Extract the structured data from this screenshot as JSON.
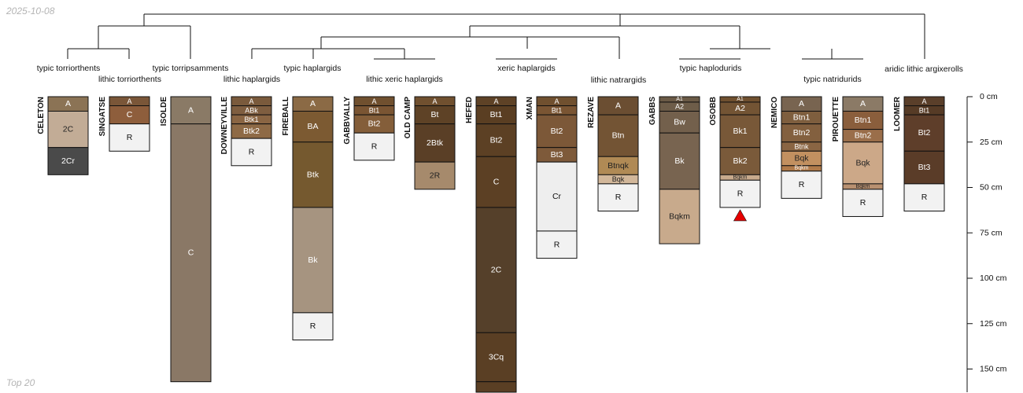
{
  "header": {
    "date": "2025-10-08"
  },
  "footer": {
    "note": "Top 20"
  },
  "depth_axis": {
    "unit": "cm",
    "max_depth": 160,
    "ticks": [
      {
        "value": 0,
        "label": "0 cm"
      },
      {
        "value": 25,
        "label": "25 cm"
      },
      {
        "value": 50,
        "label": "50 cm"
      },
      {
        "value": 75,
        "label": "75 cm"
      },
      {
        "value": 100,
        "label": "100 cm"
      },
      {
        "value": 125,
        "label": "125 cm"
      },
      {
        "value": 150,
        "label": "150 cm"
      }
    ]
  },
  "taxa": [
    "typic torriorthents",
    "lithic torriorthents",
    "typic torripsamments",
    "lithic haplargids",
    "typic haplargids",
    "lithic xeric haplargids",
    "xeric haplargids",
    "lithic natrargids",
    "typic haplodurids",
    "typic natridurids",
    "aridic lithic argixerolls"
  ],
  "profiles": [
    {
      "name": "CELETON",
      "horizons": [
        {
          "name": "A",
          "top": 0,
          "bottom": 8,
          "color": "#8B7355",
          "text": "#ffffff"
        },
        {
          "name": "2C",
          "top": 8,
          "bottom": 28,
          "color": "#C2AC96",
          "text": "#222222"
        },
        {
          "name": "2Cr",
          "top": 28,
          "bottom": 43,
          "color": "#4A4A4A",
          "text": "#ffffff"
        }
      ]
    },
    {
      "name": "SINGATSE",
      "horizons": [
        {
          "name": "A",
          "top": 0,
          "bottom": 5,
          "color": "#7A5638",
          "text": "#ffffff"
        },
        {
          "name": "C",
          "top": 5,
          "bottom": 15,
          "color": "#8E5E3C",
          "text": "#ffffff"
        },
        {
          "name": "R",
          "top": 15,
          "bottom": 30,
          "color": "#F2F2F2",
          "text": "#111111"
        }
      ]
    },
    {
      "name": "ISOLDE",
      "horizons": [
        {
          "name": "A",
          "top": 0,
          "bottom": 15,
          "color": "#8A7A66",
          "text": "#ffffff"
        },
        {
          "name": "C",
          "top": 15,
          "bottom": 157,
          "color": "#8A7866",
          "text": "#ffffff"
        }
      ]
    },
    {
      "name": "DOWNEYVILLE",
      "horizons": [
        {
          "name": "A",
          "top": 0,
          "bottom": 5,
          "color": "#7A5A3C",
          "text": "#ffffff"
        },
        {
          "name": "ABk",
          "top": 5,
          "bottom": 10,
          "color": "#7F5E40",
          "text": "#ffffff"
        },
        {
          "name": "Btk1",
          "top": 10,
          "bottom": 15,
          "color": "#8A6543",
          "text": "#ffffff"
        },
        {
          "name": "Btk2",
          "top": 15,
          "bottom": 23,
          "color": "#8E6A46",
          "text": "#ffffff"
        },
        {
          "name": "R",
          "top": 23,
          "bottom": 38,
          "color": "#F2F2F2",
          "text": "#111111"
        }
      ]
    },
    {
      "name": "FIREBALL",
      "horizons": [
        {
          "name": "A",
          "top": 0,
          "bottom": 8,
          "color": "#8B6A45",
          "text": "#ffffff"
        },
        {
          "name": "BA",
          "top": 8,
          "bottom": 25,
          "color": "#7C5A32",
          "text": "#ffffff"
        },
        {
          "name": "Btk",
          "top": 25,
          "bottom": 61,
          "color": "#75592F",
          "text": "#ffffff"
        },
        {
          "name": "Bk",
          "top": 61,
          "bottom": 119,
          "color": "#A69480",
          "text": "#ffffff"
        },
        {
          "name": "R",
          "top": 119,
          "bottom": 134,
          "color": "#F2F2F2",
          "text": "#111111"
        }
      ]
    },
    {
      "name": "GABBVALLY",
      "horizons": [
        {
          "name": "A",
          "top": 0,
          "bottom": 5,
          "color": "#70502F",
          "text": "#ffffff"
        },
        {
          "name": "Bt1",
          "top": 5,
          "bottom": 10,
          "color": "#7A5533",
          "text": "#ffffff"
        },
        {
          "name": "Bt2",
          "top": 10,
          "bottom": 20,
          "color": "#845E3A",
          "text": "#ffffff"
        },
        {
          "name": "R",
          "top": 20,
          "bottom": 35,
          "color": "#F2F2F2",
          "text": "#111111"
        }
      ]
    },
    {
      "name": "OLD CAMP",
      "horizons": [
        {
          "name": "A",
          "top": 0,
          "bottom": 5,
          "color": "#70502F",
          "text": "#ffffff"
        },
        {
          "name": "Bt",
          "top": 5,
          "bottom": 15,
          "color": "#5E4226",
          "text": "#ffffff"
        },
        {
          "name": "2Btk",
          "top": 15,
          "bottom": 36,
          "color": "#5A3F26",
          "text": "#ffffff"
        },
        {
          "name": "2R",
          "top": 36,
          "bottom": 51,
          "color": "#A68A6C",
          "text": "#222222"
        }
      ]
    },
    {
      "name": "HEFED",
      "horizons": [
        {
          "name": "A",
          "top": 0,
          "bottom": 5,
          "color": "#5E4226",
          "text": "#ffffff"
        },
        {
          "name": "Bt1",
          "top": 5,
          "bottom": 15,
          "color": "#5A3E22",
          "text": "#ffffff"
        },
        {
          "name": "Bt2",
          "top": 15,
          "bottom": 33,
          "color": "#5C4024",
          "text": "#ffffff"
        },
        {
          "name": "C",
          "top": 33,
          "bottom": 61,
          "color": "#5C4024",
          "text": "#ffffff"
        },
        {
          "name": "2C",
          "top": 61,
          "bottom": 130,
          "color": "#55402A",
          "text": "#ffffff"
        },
        {
          "name": "3Cq",
          "top": 130,
          "bottom": 157,
          "color": "#5A3F24",
          "text": "#ffffff"
        },
        {
          "name": "",
          "top": 157,
          "bottom": 165,
          "color": "#5A3F24",
          "text": "#ffffff"
        }
      ]
    },
    {
      "name": "XMAN",
      "horizons": [
        {
          "name": "A",
          "top": 0,
          "bottom": 5,
          "color": "#70502F",
          "text": "#ffffff"
        },
        {
          "name": "Bt1",
          "top": 5,
          "bottom": 10,
          "color": "#7A5533",
          "text": "#ffffff"
        },
        {
          "name": "Bt2",
          "top": 10,
          "bottom": 28,
          "color": "#7C5838",
          "text": "#ffffff"
        },
        {
          "name": "Bt3",
          "top": 28,
          "bottom": 36,
          "color": "#7E5A3A",
          "text": "#ffffff"
        },
        {
          "name": "Cr",
          "top": 36,
          "bottom": 74,
          "color": "#EEEEEE",
          "text": "#111111"
        },
        {
          "name": "R",
          "top": 74,
          "bottom": 89,
          "color": "#F2F2F2",
          "text": "#111111"
        }
      ]
    },
    {
      "name": "REZAVE",
      "horizons": [
        {
          "name": "A",
          "top": 0,
          "bottom": 10,
          "color": "#6B4E32",
          "text": "#ffffff"
        },
        {
          "name": "Btn",
          "top": 10,
          "bottom": 33,
          "color": "#735434",
          "text": "#ffffff"
        },
        {
          "name": "Btnqk",
          "top": 33,
          "bottom": 43,
          "color": "#B08A55",
          "text": "#222222"
        },
        {
          "name": "Bqk",
          "top": 43,
          "bottom": 48,
          "color": "#D2B79A",
          "text": "#222222"
        },
        {
          "name": "R",
          "top": 48,
          "bottom": 63,
          "color": "#F2F2F2",
          "text": "#111111"
        }
      ]
    },
    {
      "name": "GABBS",
      "horizons": [
        {
          "name": "A1",
          "top": 0,
          "bottom": 3,
          "color": "#6B5A46",
          "text": "#ffffff"
        },
        {
          "name": "A2",
          "top": 3,
          "bottom": 8,
          "color": "#6E5D49",
          "text": "#ffffff"
        },
        {
          "name": "Bw",
          "top": 8,
          "bottom": 20,
          "color": "#73604C",
          "text": "#ffffff"
        },
        {
          "name": "Bk",
          "top": 20,
          "bottom": 51,
          "color": "#786450",
          "text": "#ffffff"
        },
        {
          "name": "Bqkm",
          "top": 51,
          "bottom": 81,
          "color": "#C8AA8C",
          "text": "#222222"
        }
      ]
    },
    {
      "name": "OSOBB",
      "horizons": [
        {
          "name": "A1",
          "top": 0,
          "bottom": 3,
          "color": "#70502F",
          "text": "#ffffff"
        },
        {
          "name": "A2",
          "top": 3,
          "bottom": 10,
          "color": "#735434",
          "text": "#ffffff"
        },
        {
          "name": "Bk1",
          "top": 10,
          "bottom": 28,
          "color": "#785838",
          "text": "#ffffff"
        },
        {
          "name": "Bk2",
          "top": 28,
          "bottom": 43,
          "color": "#7A5A3A",
          "text": "#ffffff"
        },
        {
          "name": "Bqkm",
          "top": 43,
          "bottom": 46,
          "color": "#C8AA8C",
          "text": "#222222"
        },
        {
          "name": "R",
          "top": 46,
          "bottom": 61,
          "color": "#F2F2F2",
          "text": "#111111"
        }
      ]
    },
    {
      "name": "NEMICO",
      "horizons": [
        {
          "name": "A",
          "top": 0,
          "bottom": 8,
          "color": "#786450",
          "text": "#ffffff"
        },
        {
          "name": "Btn1",
          "top": 8,
          "bottom": 15,
          "color": "#7E5E3E",
          "text": "#ffffff"
        },
        {
          "name": "Btn2",
          "top": 15,
          "bottom": 25,
          "color": "#83603F",
          "text": "#ffffff"
        },
        {
          "name": "Btnk",
          "top": 25,
          "bottom": 30,
          "color": "#8A6543",
          "text": "#ffffff"
        },
        {
          "name": "Bqk",
          "top": 30,
          "bottom": 38,
          "color": "#C29060",
          "text": "#222222"
        },
        {
          "name": "Bqkm",
          "top": 38,
          "bottom": 41,
          "color": "#B07A4A",
          "text": "#ffffff"
        },
        {
          "name": "R",
          "top": 41,
          "bottom": 56,
          "color": "#F2F2F2",
          "text": "#111111"
        }
      ]
    },
    {
      "name": "PIROUETTE",
      "horizons": [
        {
          "name": "A",
          "top": 0,
          "bottom": 8,
          "color": "#8B7A66",
          "text": "#ffffff"
        },
        {
          "name": "Btn1",
          "top": 8,
          "bottom": 18,
          "color": "#8A5E3C",
          "text": "#ffffff"
        },
        {
          "name": "Btn2",
          "top": 18,
          "bottom": 25,
          "color": "#9A6E4A",
          "text": "#ffffff"
        },
        {
          "name": "Bqk",
          "top": 25,
          "bottom": 48,
          "color": "#CCA888",
          "text": "#222222"
        },
        {
          "name": "Bqkm",
          "top": 48,
          "bottom": 51,
          "color": "#B89070",
          "text": "#222222"
        },
        {
          "name": "R",
          "top": 51,
          "bottom": 66,
          "color": "#F2F2F2",
          "text": "#111111"
        }
      ]
    },
    {
      "name": "LOOMER",
      "horizons": [
        {
          "name": "A",
          "top": 0,
          "bottom": 5,
          "color": "#5A3F2A",
          "text": "#ffffff"
        },
        {
          "name": "Bt1",
          "top": 5,
          "bottom": 10,
          "color": "#563B26",
          "text": "#ffffff"
        },
        {
          "name": "Bt2",
          "top": 10,
          "bottom": 30,
          "color": "#5E3E2A",
          "text": "#ffffff"
        },
        {
          "name": "Bt3",
          "top": 30,
          "bottom": 48,
          "color": "#5A3C28",
          "text": "#ffffff"
        },
        {
          "name": "R",
          "top": 48,
          "bottom": 63,
          "color": "#F2F2F2",
          "text": "#111111"
        }
      ]
    }
  ],
  "marker": {
    "profile": "OSOBB",
    "color": "#E60000"
  }
}
